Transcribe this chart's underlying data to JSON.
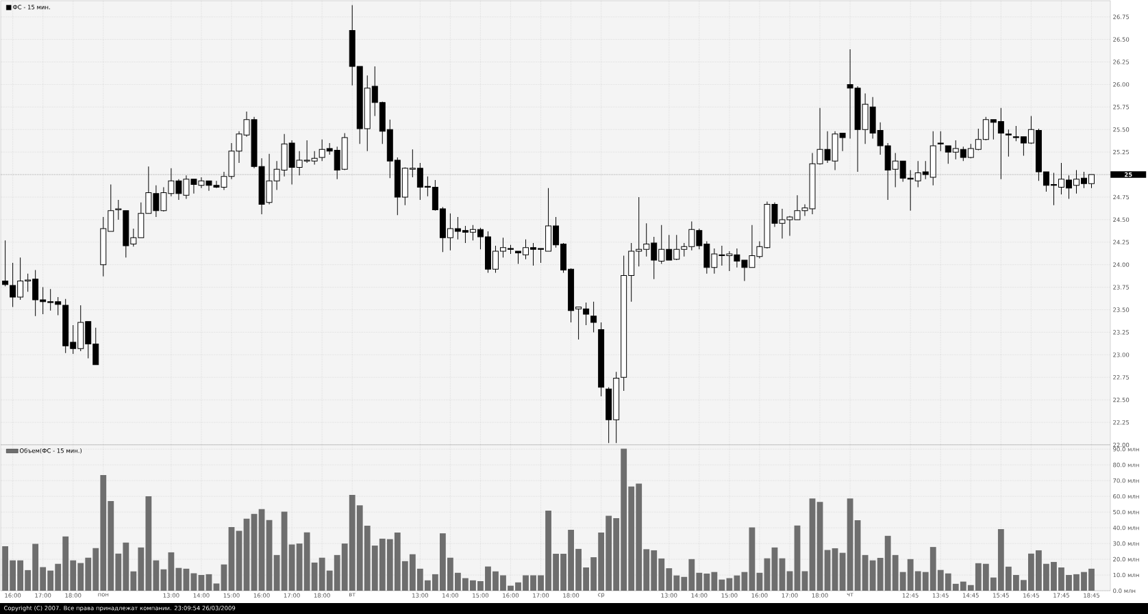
{
  "chart_data": [
    {
      "type": "candlestick",
      "categories": [
        null,
        null,
        null,
        null,
        null,
        null,
        null,
        null,
        null,
        null,
        null,
        null,
        null,
        null,
        null,
        null,
        null,
        null,
        null,
        null,
        null,
        null,
        null,
        null,
        null,
        null,
        null,
        null,
        null,
        null,
        null,
        null,
        null,
        null,
        null,
        null,
        null,
        null,
        null,
        null,
        null,
        null,
        null,
        null,
        null,
        null,
        null,
        null,
        null,
        null,
        null,
        null,
        null,
        null,
        null,
        null,
        null,
        null,
        null,
        null,
        null,
        null,
        null,
        null,
        null,
        null,
        null,
        null,
        null,
        null,
        null,
        null,
        null,
        null,
        null,
        null,
        null,
        null,
        null,
        null,
        null,
        null,
        null,
        null,
        null,
        null,
        null,
        null,
        null,
        null,
        null,
        null,
        null,
        null,
        null,
        null,
        null,
        null,
        null,
        null,
        null,
        null,
        null,
        null,
        null,
        null,
        null,
        null,
        null,
        null,
        null,
        null,
        null,
        null,
        null,
        null,
        null,
        null,
        null,
        null,
        null,
        null,
        null,
        null,
        null,
        null,
        null,
        null,
        null,
        null,
        null,
        null,
        null,
        null,
        null,
        null,
        null,
        null,
        null,
        null,
        null,
        null,
        null,
        null,
        null
      ],
      "series": [
        {
          "name": "ФС - 15 мин.",
          "color": "#000000",
          "ohlc": [
            [
              23.82,
              24.27,
              23.76,
              23.78
            ],
            [
              23.77,
              24.02,
              23.53,
              23.64
            ],
            [
              23.64,
              24.08,
              23.61,
              23.82
            ],
            [
              23.82,
              23.9,
              23.7,
              23.83
            ],
            [
              23.84,
              23.94,
              23.43,
              23.61
            ],
            [
              23.61,
              23.75,
              23.45,
              23.59
            ],
            [
              23.59,
              23.73,
              23.49,
              23.58
            ],
            [
              23.59,
              23.64,
              23.44,
              23.56
            ],
            [
              23.55,
              23.62,
              23.02,
              23.1
            ],
            [
              23.14,
              23.33,
              23.01,
              23.07
            ],
            [
              23.07,
              23.55,
              23.04,
              23.36
            ],
            [
              23.37,
              23.37,
              22.96,
              23.12
            ],
            [
              23.12,
              23.3,
              22.89,
              22.89
            ],
            [
              24.0,
              24.53,
              23.87,
              24.4
            ],
            [
              24.37,
              24.89,
              24.37,
              24.6
            ],
            [
              24.61,
              24.72,
              24.5,
              24.62
            ],
            [
              24.6,
              24.6,
              24.08,
              24.21
            ],
            [
              24.23,
              24.4,
              24.2,
              24.3
            ],
            [
              24.3,
              24.69,
              24.3,
              24.57
            ],
            [
              24.57,
              25.09,
              24.57,
              24.8
            ],
            [
              24.79,
              24.88,
              24.53,
              24.6
            ],
            [
              24.6,
              24.86,
              24.59,
              24.8
            ],
            [
              24.79,
              25.07,
              24.76,
              24.93
            ],
            [
              24.93,
              24.95,
              24.72,
              24.79
            ],
            [
              24.77,
              24.99,
              24.73,
              24.95
            ],
            [
              24.95,
              24.95,
              24.79,
              24.89
            ],
            [
              24.88,
              24.97,
              24.85,
              24.93
            ],
            [
              24.93,
              24.93,
              24.82,
              24.88
            ],
            [
              24.88,
              24.93,
              24.85,
              24.86
            ],
            [
              24.86,
              25.03,
              24.83,
              24.98
            ],
            [
              24.98,
              25.35,
              24.95,
              25.26
            ],
            [
              25.26,
              25.48,
              25.13,
              25.45
            ],
            [
              25.44,
              25.7,
              25.42,
              25.61
            ],
            [
              25.61,
              25.64,
              25.07,
              25.09
            ],
            [
              25.09,
              25.18,
              24.56,
              24.67
            ],
            [
              24.69,
              25.23,
              24.67,
              24.93
            ],
            [
              24.93,
              25.15,
              24.83,
              25.06
            ],
            [
              25.05,
              25.45,
              24.98,
              25.34
            ],
            [
              25.35,
              25.38,
              24.89,
              25.08
            ],
            [
              25.08,
              25.26,
              24.99,
              25.16
            ],
            [
              25.15,
              25.38,
              25.13,
              25.16
            ],
            [
              25.15,
              25.26,
              25.11,
              25.18
            ],
            [
              25.19,
              25.39,
              25.15,
              25.28
            ],
            [
              25.29,
              25.35,
              25.22,
              25.26
            ],
            [
              25.27,
              25.31,
              24.95,
              25.05
            ],
            [
              25.06,
              25.46,
              25.05,
              25.41
            ],
            [
              26.6,
              26.88,
              25.99,
              26.2
            ],
            [
              26.2,
              26.2,
              25.34,
              25.51
            ],
            [
              25.51,
              26.1,
              25.26,
              25.96
            ],
            [
              25.98,
              26.2,
              25.65,
              25.8
            ],
            [
              25.8,
              25.81,
              25.34,
              25.48
            ],
            [
              25.5,
              25.61,
              24.96,
              25.15
            ],
            [
              25.16,
              25.19,
              24.55,
              24.75
            ],
            [
              24.75,
              25.08,
              24.66,
              25.07
            ],
            [
              25.06,
              25.28,
              24.97,
              25.07
            ],
            [
              25.07,
              25.13,
              24.72,
              24.86
            ],
            [
              24.87,
              24.98,
              24.76,
              24.86
            ],
            [
              24.86,
              24.94,
              24.6,
              24.61
            ],
            [
              24.62,
              24.64,
              24.14,
              24.3
            ],
            [
              24.3,
              24.57,
              24.16,
              24.4
            ],
            [
              24.4,
              24.53,
              24.28,
              24.37
            ],
            [
              24.38,
              24.43,
              24.24,
              24.36
            ],
            [
              24.36,
              24.44,
              24.27,
              24.39
            ],
            [
              24.39,
              24.41,
              24.17,
              24.31
            ],
            [
              24.31,
              24.37,
              23.91,
              23.95
            ],
            [
              23.95,
              24.21,
              23.91,
              24.15
            ],
            [
              24.15,
              24.3,
              24.08,
              24.19
            ],
            [
              24.18,
              24.22,
              24.12,
              24.17
            ],
            [
              24.15,
              24.15,
              24.01,
              24.13
            ],
            [
              24.11,
              24.28,
              24.06,
              24.19
            ],
            [
              24.19,
              24.24,
              23.99,
              24.17
            ],
            [
              24.18,
              24.18,
              24.02,
              24.17
            ],
            [
              24.15,
              24.85,
              24.15,
              24.43
            ],
            [
              24.43,
              24.53,
              24.19,
              24.22
            ],
            [
              24.23,
              24.24,
              23.91,
              23.94
            ],
            [
              23.95,
              23.96,
              23.36,
              23.49
            ],
            [
              23.51,
              23.53,
              23.17,
              23.53
            ],
            [
              23.51,
              23.58,
              23.33,
              23.45
            ],
            [
              23.43,
              23.59,
              23.25,
              23.36
            ],
            [
              23.28,
              23.36,
              22.54,
              22.64
            ],
            [
              22.62,
              22.64,
              22.02,
              22.28
            ],
            [
              22.28,
              22.81,
              22.02,
              22.74
            ],
            [
              22.75,
              24.1,
              22.6,
              23.88
            ],
            [
              23.88,
              24.24,
              23.59,
              24.15
            ],
            [
              24.15,
              24.75,
              23.98,
              24.17
            ],
            [
              24.17,
              24.46,
              24.09,
              24.23
            ],
            [
              24.24,
              24.31,
              23.84,
              24.05
            ],
            [
              24.04,
              24.44,
              24.01,
              24.17
            ],
            [
              24.17,
              24.33,
              24.05,
              24.05
            ],
            [
              24.06,
              24.33,
              24.05,
              24.17
            ],
            [
              24.17,
              24.24,
              24.09,
              24.2
            ],
            [
              24.2,
              24.48,
              24.16,
              24.39
            ],
            [
              24.38,
              24.4,
              24.17,
              24.21
            ],
            [
              24.23,
              24.26,
              23.9,
              23.97
            ],
            [
              23.97,
              24.18,
              23.9,
              24.12
            ],
            [
              24.11,
              24.21,
              23.99,
              24.1
            ],
            [
              24.1,
              24.15,
              23.93,
              24.12
            ],
            [
              24.11,
              24.18,
              23.97,
              24.04
            ],
            [
              24.05,
              24.05,
              23.82,
              23.97
            ],
            [
              23.97,
              24.44,
              23.97,
              24.1
            ],
            [
              24.09,
              24.26,
              24.07,
              24.2
            ],
            [
              24.19,
              24.7,
              24.18,
              24.67
            ],
            [
              24.67,
              24.69,
              24.42,
              24.46
            ],
            [
              24.46,
              24.62,
              24.29,
              24.5
            ],
            [
              24.5,
              24.54,
              24.32,
              24.53
            ],
            [
              24.5,
              24.77,
              24.5,
              24.6
            ],
            [
              24.6,
              24.67,
              24.54,
              24.63
            ],
            [
              24.62,
              25.24,
              24.56,
              25.12
            ],
            [
              25.12,
              25.74,
              25.11,
              25.28
            ],
            [
              25.28,
              25.48,
              25.13,
              25.16
            ],
            [
              25.15,
              25.48,
              25.05,
              25.45
            ],
            [
              25.46,
              25.46,
              25.26,
              25.41
            ],
            [
              26.0,
              26.39,
              25.4,
              25.96
            ],
            [
              25.96,
              25.98,
              25.03,
              25.5
            ],
            [
              25.5,
              25.9,
              25.34,
              25.78
            ],
            [
              25.75,
              25.86,
              25.4,
              25.46
            ],
            [
              25.49,
              25.58,
              25.22,
              25.32
            ],
            [
              25.32,
              25.35,
              24.72,
              25.05
            ],
            [
              25.06,
              25.24,
              24.86,
              25.15
            ],
            [
              25.15,
              25.15,
              24.92,
              24.96
            ],
            [
              24.96,
              25.05,
              24.6,
              24.95
            ],
            [
              24.93,
              25.15,
              24.86,
              25.02
            ],
            [
              25.03,
              25.15,
              24.95,
              25.0
            ],
            [
              24.97,
              25.48,
              24.88,
              25.32
            ],
            [
              25.35,
              25.48,
              25.26,
              25.34
            ],
            [
              25.32,
              25.32,
              25.12,
              25.25
            ],
            [
              25.25,
              25.38,
              25.17,
              25.29
            ],
            [
              25.28,
              25.31,
              25.15,
              25.19
            ],
            [
              25.19,
              25.34,
              25.18,
              25.29
            ],
            [
              25.28,
              25.51,
              25.27,
              25.39
            ],
            [
              25.39,
              25.64,
              25.38,
              25.61
            ],
            [
              25.61,
              25.61,
              25.39,
              25.58
            ],
            [
              25.59,
              25.74,
              24.95,
              25.46
            ],
            [
              25.45,
              25.5,
              25.2,
              25.44
            ],
            [
              25.42,
              25.54,
              25.37,
              25.41
            ],
            [
              25.42,
              25.42,
              25.21,
              25.35
            ],
            [
              25.35,
              25.65,
              25.34,
              25.5
            ],
            [
              25.49,
              25.51,
              24.93,
              25.03
            ],
            [
              25.03,
              25.03,
              24.81,
              24.88
            ],
            [
              24.89,
              25.02,
              24.66,
              24.88
            ],
            [
              24.86,
              25.13,
              24.78,
              24.95
            ],
            [
              24.94,
              24.99,
              24.73,
              24.85
            ],
            [
              24.88,
              25.05,
              24.79,
              24.95
            ],
            [
              24.96,
              25.03,
              24.85,
              24.9
            ],
            [
              24.9,
              25.0,
              24.85,
              25.0
            ]
          ]
        }
      ],
      "ylim": [
        22.0,
        26.93
      ],
      "yticks": [
        {
          "value": 22.0,
          "label": "22.00"
        },
        22.25,
        {
          "value": 22.5,
          "label": "22.50"
        },
        22.75,
        {
          "value": 23.0,
          "label": "23.00"
        },
        23.25,
        {
          "value": 23.5,
          "label": "23.50"
        },
        23.75,
        {
          "value": 24.0,
          "label": "24.00"
        },
        24.25,
        {
          "value": 24.5,
          "label": "24.50"
        },
        24.75,
        {
          "value": 25.0,
          "label": null
        },
        25.25,
        {
          "value": 25.5,
          "label": "25.50"
        },
        25.75,
        {
          "value": 26.0,
          "label": "26.00"
        },
        26.25,
        {
          "value": 26.5,
          "label": "26.50"
        },
        26.75
      ],
      "ref_lines": [
        {
          "axis": "y",
          "value": 25,
          "label": "25",
          "color": "#000000"
        }
      ],
      "grid": true,
      "legend": "top left"
    },
    {
      "type": "bar",
      "categories": [
        null,
        "16:00",
        null,
        null,
        null,
        "17:00",
        null,
        null,
        null,
        "18:00",
        null,
        null,
        null,
        "пон",
        null,
        null,
        null,
        null,
        null,
        null,
        null,
        null,
        "13:00",
        null,
        null,
        null,
        "14:00",
        null,
        null,
        null,
        "15:00",
        null,
        null,
        null,
        "16:00",
        null,
        null,
        null,
        "17:00",
        null,
        null,
        null,
        "18:00",
        null,
        null,
        null,
        "вт",
        null,
        null,
        null,
        null,
        null,
        null,
        null,
        null,
        "13:00",
        null,
        null,
        null,
        "14:00",
        null,
        null,
        null,
        "15:00",
        null,
        null,
        null,
        "16:00",
        null,
        null,
        null,
        "17:00",
        null,
        null,
        null,
        "18:00",
        null,
        null,
        null,
        "ср",
        null,
        null,
        null,
        null,
        null,
        null,
        null,
        null,
        "13:00",
        null,
        null,
        null,
        "14:00",
        null,
        null,
        null,
        "15:00",
        null,
        null,
        null,
        "16:00",
        null,
        null,
        null,
        "17:00",
        null,
        null,
        null,
        "18:00",
        null,
        null,
        null,
        "чт",
        null,
        null,
        null,
        null,
        null,
        null,
        null,
        "12:45",
        null,
        null,
        null,
        "13:45",
        null,
        null,
        null,
        "14:45",
        null,
        null,
        null,
        "15:45",
        null,
        null,
        null,
        "16:45",
        null,
        null,
        null,
        "17:45",
        null,
        null,
        null,
        "18:45"
      ],
      "series": [
        {
          "name": "Объем(ФС - 15 мин.)",
          "color": "#6e6e6e",
          "values": [
            28.3,
            19.3,
            19.3,
            13.1,
            29.8,
            15.0,
            12.8,
            17.1,
            34.5,
            19.3,
            17.6,
            21.0,
            27.1,
            73.6,
            57.0,
            23.6,
            30.6,
            12.3,
            27.5,
            60.1,
            19.3,
            13.6,
            24.4,
            14.5,
            14.0,
            11.1,
            10.0,
            10.5,
            4.6,
            16.7,
            40.5,
            38.1,
            45.8,
            48.8,
            51.9,
            44.9,
            22.7,
            50.3,
            29.4,
            30.0,
            37.1,
            17.9,
            21.0,
            12.8,
            22.7,
            30.0,
            60.9,
            54.3,
            41.3,
            28.7,
            33.1,
            32.8,
            37.0,
            18.8,
            23.2,
            14.0,
            6.6,
            10.5,
            36.5,
            21.0,
            11.4,
            8.0,
            6.6,
            6.1,
            15.4,
            12.3,
            9.8,
            3.2,
            5.3,
            9.8,
            9.8,
            9.8,
            50.9,
            23.5,
            23.5,
            38.7,
            26.6,
            14.8,
            21.3,
            37.0,
            47.7,
            46.1,
            90.3,
            66.3,
            68.1,
            26.4,
            25.7,
            20.5,
            14.3,
            9.7,
            8.8,
            20.1,
            11.4,
            10.9,
            11.9,
            7.1,
            8.0,
            9.7,
            11.9,
            40.3,
            11.4,
            20.6,
            27.5,
            20.6,
            12.4,
            41.4,
            12.4,
            58.6,
            56.5,
            25.9,
            27.0,
            24.1,
            58.6,
            44.8,
            22.7,
            19.3,
            20.9,
            34.9,
            22.7,
            11.9,
            20.1,
            12.4,
            11.9,
            27.8,
            13.2,
            11.0,
            4.4,
            5.8,
            3.6,
            17.5,
            17.1,
            8.4,
            39.2,
            15.3,
            10.0,
            6.8,
            23.6,
            25.7,
            17.1,
            18.3,
            14.8,
            10.0,
            10.5,
            11.9,
            14.0
          ]
        }
      ],
      "ylim": [
        0,
        92.7
      ],
      "yticks": [
        {
          "value": 0,
          "label": "0.0 млн"
        },
        {
          "value": 10,
          "label": "10.0 млн"
        },
        {
          "value": 20,
          "label": "20.0 млн"
        },
        {
          "value": 30,
          "label": "30.0 млн"
        },
        {
          "value": 40,
          "label": "40.0 млн"
        },
        {
          "value": 50,
          "label": "50.0 млн"
        },
        {
          "value": 60,
          "label": "60.0 млн"
        },
        {
          "value": 70,
          "label": "70.0 млн"
        },
        {
          "value": 80,
          "label": "80.0 млн"
        },
        {
          "value": 90,
          "label": "90.0 млн"
        }
      ],
      "grid": true,
      "legend": "top left",
      "annotations": [
        "Copyright (C) 2007. Все права принадлежат компании. 23:09:54 26/03/2009"
      ]
    }
  ]
}
